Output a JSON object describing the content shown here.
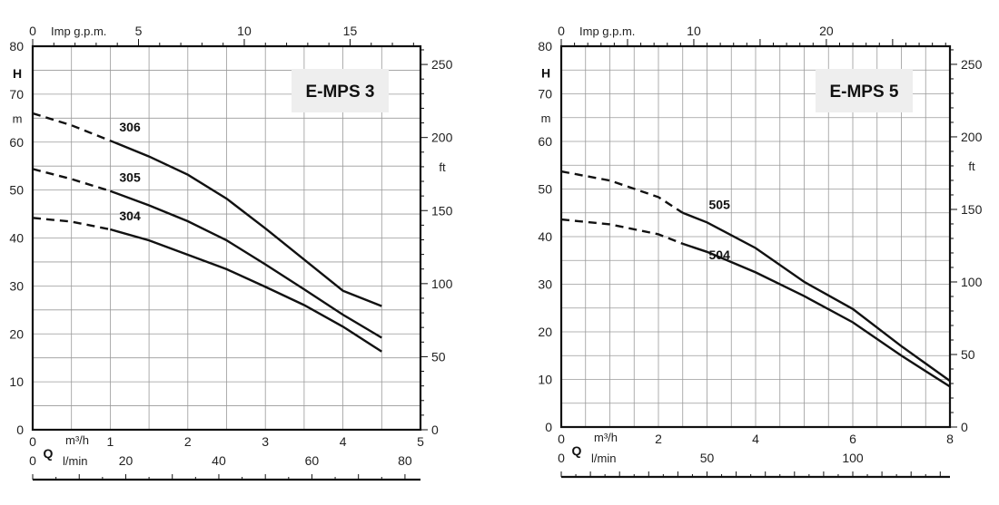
{
  "chart_data": [
    {
      "type": "line",
      "title": "E-MPS 3",
      "ylabel_symbol": "H",
      "ylabel_unit": "m",
      "ylim": [
        0,
        80
      ],
      "y_ticks": [
        0,
        10,
        20,
        30,
        40,
        50,
        60,
        70,
        80
      ],
      "xlabel_symbol": "Q",
      "xlim": [
        0,
        5
      ],
      "x_unit_m3h": "m³/h",
      "x_ticks_m3h": [
        0,
        1,
        2,
        3,
        4,
        5
      ],
      "x_unit_lmin": "l/min",
      "x_ticks_lmin": [
        0,
        20,
        40,
        60,
        80
      ],
      "top_unit": "Imp g.p.m.",
      "top_ticks": [
        0,
        5,
        10,
        15
      ],
      "right_unit": "ft",
      "right_ticks": [
        0,
        50,
        100,
        150,
        200,
        250
      ],
      "series": [
        {
          "name": "306",
          "dashed": [
            [
              0,
              66
            ],
            [
              0.5,
              63.5
            ],
            [
              1,
              60.3
            ]
          ],
          "solid": [
            [
              1,
              60.3
            ],
            [
              1.5,
              57
            ],
            [
              2,
              53.2
            ],
            [
              2.5,
              48.2
            ],
            [
              3,
              42
            ],
            [
              3.5,
              35.5
            ],
            [
              4,
              29
            ],
            [
              4.5,
              25.8
            ]
          ]
        },
        {
          "name": "305",
          "dashed": [
            [
              0,
              54.4
            ],
            [
              0.5,
              52.3
            ],
            [
              1,
              49.8
            ]
          ],
          "solid": [
            [
              1,
              49.8
            ],
            [
              1.5,
              46.8
            ],
            [
              2,
              43.5
            ],
            [
              2.5,
              39.5
            ],
            [
              3,
              34.5
            ],
            [
              3.5,
              29.3
            ],
            [
              4,
              24
            ],
            [
              4.5,
              19.2
            ]
          ]
        },
        {
          "name": "304",
          "dashed": [
            [
              0,
              44.2
            ],
            [
              0.5,
              43.4
            ],
            [
              1,
              41.8
            ]
          ],
          "solid": [
            [
              1,
              41.8
            ],
            [
              1.5,
              39.5
            ],
            [
              2,
              36.5
            ],
            [
              2.5,
              33.5
            ],
            [
              3,
              29.8
            ],
            [
              3.5,
              26
            ],
            [
              4,
              21.5
            ],
            [
              4.5,
              16.3
            ]
          ]
        }
      ]
    },
    {
      "type": "line",
      "title": "E-MPS 5",
      "ylabel_symbol": "H",
      "ylabel_unit": "m",
      "ylim": [
        0,
        80
      ],
      "y_ticks": [
        0,
        10,
        20,
        30,
        40,
        50,
        60,
        70,
        80
      ],
      "xlabel_symbol": "Q",
      "xlim": [
        0,
        8
      ],
      "x_unit_m3h": "m³/h",
      "x_ticks_m3h": [
        0,
        2,
        4,
        6,
        8
      ],
      "x_unit_lmin": "l/min",
      "x_ticks_lmin": [
        0,
        50,
        100
      ],
      "top_unit": "Imp g.p.m.",
      "top_ticks": [
        0,
        10,
        20
      ],
      "right_unit": "ft",
      "right_ticks": [
        0,
        50,
        100,
        150,
        200,
        250
      ],
      "series": [
        {
          "name": "505",
          "dashed": [
            [
              0,
              53.7
            ],
            [
              1,
              51.8
            ],
            [
              2,
              48.3
            ],
            [
              2.5,
              45
            ]
          ],
          "solid": [
            [
              2.5,
              45
            ],
            [
              3,
              43
            ],
            [
              4,
              37.6
            ],
            [
              5,
              30.5
            ],
            [
              6,
              24.8
            ],
            [
              7,
              17
            ],
            [
              8,
              9.7
            ]
          ]
        },
        {
          "name": "504",
          "dashed": [
            [
              0,
              43.6
            ],
            [
              1,
              42.6
            ],
            [
              2,
              40.5
            ],
            [
              2.5,
              38.5
            ]
          ],
          "solid": [
            [
              2.5,
              38.5
            ],
            [
              3,
              36.8
            ],
            [
              4,
              32.5
            ],
            [
              5,
              27.5
            ],
            [
              6,
              22
            ],
            [
              7,
              15
            ],
            [
              8,
              8.5
            ]
          ]
        }
      ]
    }
  ]
}
